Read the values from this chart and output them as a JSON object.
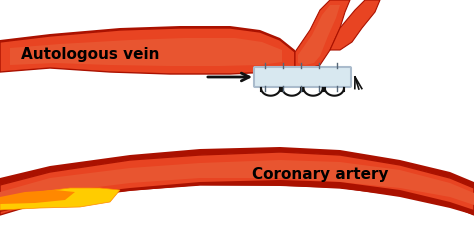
{
  "bg_color": "#ffffff",
  "red_vessel": "#cc2200",
  "red_vessel_light": "#e84422",
  "red_vessel_dark": "#aa1100",
  "red_mid": "#dd3311",
  "anastomosis_connector_color": "#d8e8f0",
  "connector_outline": "#aabbcc",
  "stent_color": "#cc2200",
  "stent_outline": "#111111",
  "plaque_yellow": "#ffcc00",
  "plaque_orange": "#ff8800",
  "arrow_black": "#111111",
  "arrow_white": "#ffffff",
  "label_autologous": "Autologous vein",
  "label_coronary": "Coronary artery",
  "font_size": 11,
  "suture_color": "#111111"
}
